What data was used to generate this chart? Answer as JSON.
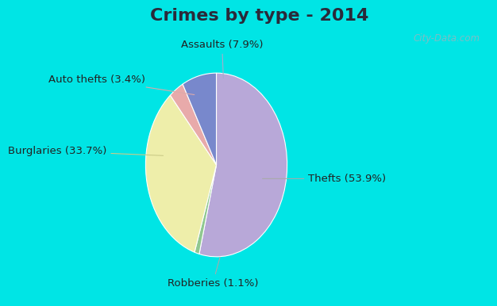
{
  "title": "Crimes by type - 2014",
  "slices": [
    {
      "label": "Thefts (53.9%)",
      "value": 53.9,
      "color": "#b8a8d8"
    },
    {
      "label": "Robberies (1.1%)",
      "value": 1.1,
      "color": "#90c890"
    },
    {
      "label": "Burglaries (33.7%)",
      "value": 33.7,
      "color": "#eeeeaa"
    },
    {
      "label": "Auto thefts (3.4%)",
      "value": 3.4,
      "color": "#e8aaaa"
    },
    {
      "label": "Assaults (7.9%)",
      "value": 7.9,
      "color": "#7888cc"
    }
  ],
  "bg_cyan": "#00e5e5",
  "bg_inner": "#d0e8e0",
  "title_fontsize": 16,
  "label_fontsize": 9.5,
  "title_color": "#2a2a3a",
  "label_color": "#222222",
  "watermark": "City-Data.com",
  "watermark_color": "#90b8c0"
}
